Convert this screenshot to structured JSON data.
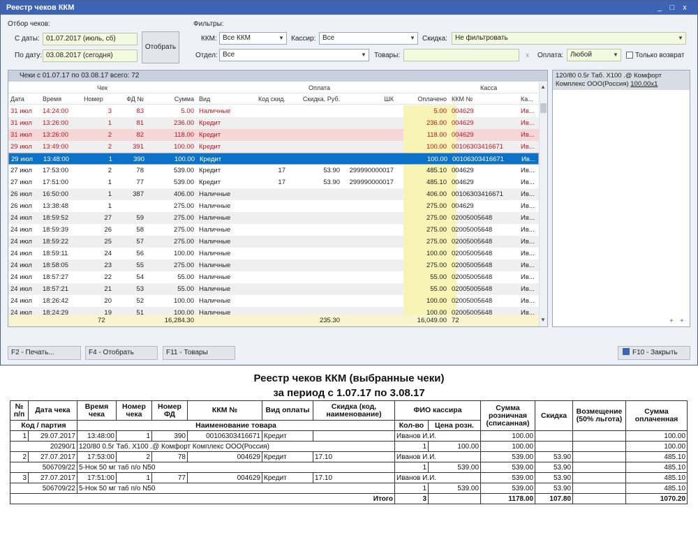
{
  "window": {
    "title": "Реестр чеков ККМ",
    "controls": [
      "_",
      "□",
      "x"
    ]
  },
  "selection": {
    "title": "Отбор чеков:",
    "from_label": "С даты:",
    "from_value": "01.07.2017  (июль, сб)",
    "to_label": "По дату:",
    "to_value": "03.08.2017  (сегодня)",
    "select_button": "Отобрать"
  },
  "filters": {
    "title": "Фильтры:",
    "kkm_label": "ККМ:",
    "kkm_value": "Все ККМ",
    "cashier_label": "Кассир:",
    "cashier_value": "Все",
    "discount_label": "Скидка:",
    "discount_value": "Не фильтровать",
    "dept_label": "Отдел:",
    "dept_value": "Все",
    "goods_label": "Товары:",
    "goods_value": "",
    "clear_glyph": "x",
    "payment_label": "Оплата:",
    "payment_value": "Любой",
    "returns_only_label": "Только возврат"
  },
  "grid": {
    "caption": "Чеки  с 01.07.17 по 03.08.17 всего: 72",
    "groups": [
      "Чек",
      "Оплата",
      "Касса"
    ],
    "columns": [
      "Дата",
      "Время",
      "Номер",
      "ФД №",
      "Сумма",
      "Вид",
      "Код скид.",
      "Скидка, Руб.",
      "ШК",
      "Оплачено",
      "ККМ №",
      "Ка..."
    ],
    "rows": [
      {
        "date": "31 июл",
        "time": "14:24:00",
        "num": "3",
        "fd": "83",
        "sum": "5.00",
        "kind": "Наличные",
        "dcode": "",
        "disc": "",
        "bc": "",
        "paid": "5.00",
        "kkm": "004629",
        "cash": "Ив...",
        "style": "red"
      },
      {
        "date": "31 июл",
        "time": "13:26:00",
        "num": "1",
        "fd": "81",
        "sum": "236.00",
        "kind": "Кредит",
        "dcode": "",
        "disc": "",
        "bc": "",
        "paid": "236.00",
        "kkm": "004629",
        "cash": "Ив...",
        "style": "red alt"
      },
      {
        "date": "31 июл",
        "time": "13:26:00",
        "num": "2",
        "fd": "82",
        "sum": "118.00",
        "kind": "Кредит",
        "dcode": "",
        "disc": "",
        "bc": "",
        "paid": "118.00",
        "kkm": "004629",
        "cash": "Ив...",
        "style": "red pink"
      },
      {
        "date": "29 июл",
        "time": "13:49:00",
        "num": "2",
        "fd": "391",
        "sum": "100.00",
        "kind": "Кредит",
        "dcode": "",
        "disc": "",
        "bc": "",
        "paid": "100.00",
        "kkm": "00106303416671",
        "cash": "Ив...",
        "style": "red alt"
      },
      {
        "date": "29 июл",
        "time": "13:48:00",
        "num": "1",
        "fd": "390",
        "sum": "100.00",
        "kind": "Кредит",
        "dcode": "",
        "disc": "",
        "bc": "",
        "paid": "100.00",
        "kkm": "00106303416671",
        "cash": "Ив...",
        "style": "sel"
      },
      {
        "date": "27 июл",
        "time": "17:53:00",
        "num": "2",
        "fd": "78",
        "sum": "539.00",
        "kind": "Кредит",
        "dcode": "17",
        "disc": "53.90",
        "bc": "299990000017",
        "paid": "485.10",
        "kkm": "004629",
        "cash": "Ив...",
        "style": ""
      },
      {
        "date": "27 июл",
        "time": "17:51:00",
        "num": "1",
        "fd": "77",
        "sum": "539.00",
        "kind": "Кредит",
        "dcode": "17",
        "disc": "53.90",
        "bc": "299990000017",
        "paid": "485.10",
        "kkm": "004629",
        "cash": "Ив...",
        "style": ""
      },
      {
        "date": "26 июл",
        "time": "16:50:00",
        "num": "1",
        "fd": "387",
        "sum": "406.00",
        "kind": "Наличные",
        "dcode": "",
        "disc": "",
        "bc": "",
        "paid": "406.00",
        "kkm": "00106303416671",
        "cash": "Ив...",
        "style": "alt"
      },
      {
        "date": "26 июл",
        "time": "13:38:48",
        "num": "1",
        "fd": "",
        "sum": "275.00",
        "kind": "Наличные",
        "dcode": "",
        "disc": "",
        "bc": "",
        "paid": "275.00",
        "kkm": "004629",
        "cash": "Ив...",
        "style": ""
      },
      {
        "date": "24 июл",
        "time": "18:59:52",
        "num": "27",
        "fd": "59",
        "sum": "275.00",
        "kind": "Наличные",
        "dcode": "",
        "disc": "",
        "bc": "",
        "paid": "275.00",
        "kkm": "02005005648",
        "cash": "Ив...",
        "style": "alt"
      },
      {
        "date": "24 июл",
        "time": "18:59:39",
        "num": "26",
        "fd": "58",
        "sum": "275.00",
        "kind": "Наличные",
        "dcode": "",
        "disc": "",
        "bc": "",
        "paid": "275.00",
        "kkm": "02005005648",
        "cash": "Ив...",
        "style": ""
      },
      {
        "date": "24 июл",
        "time": "18:59:22",
        "num": "25",
        "fd": "57",
        "sum": "275.00",
        "kind": "Наличные",
        "dcode": "",
        "disc": "",
        "bc": "",
        "paid": "275.00",
        "kkm": "02005005648",
        "cash": "Ив...",
        "style": "alt"
      },
      {
        "date": "24 июл",
        "time": "18:59:11",
        "num": "24",
        "fd": "56",
        "sum": "100.00",
        "kind": "Наличные",
        "dcode": "",
        "disc": "",
        "bc": "",
        "paid": "100.00",
        "kkm": "02005005648",
        "cash": "Ив...",
        "style": ""
      },
      {
        "date": "24 июл",
        "time": "18:58:05",
        "num": "23",
        "fd": "55",
        "sum": "275.00",
        "kind": "Наличные",
        "dcode": "",
        "disc": "",
        "bc": "",
        "paid": "275.00",
        "kkm": "02005005648",
        "cash": "Ив...",
        "style": "alt"
      },
      {
        "date": "24 июл",
        "time": "18:57:27",
        "num": "22",
        "fd": "54",
        "sum": "55.00",
        "kind": "Наличные",
        "dcode": "",
        "disc": "",
        "bc": "",
        "paid": "55.00",
        "kkm": "02005005648",
        "cash": "Ив...",
        "style": ""
      },
      {
        "date": "24 июл",
        "time": "18:57:21",
        "num": "21",
        "fd": "53",
        "sum": "55.00",
        "kind": "Наличные",
        "dcode": "",
        "disc": "",
        "bc": "",
        "paid": "55.00",
        "kkm": "02005005648",
        "cash": "Ив...",
        "style": "alt"
      },
      {
        "date": "24 июл",
        "time": "18:26:42",
        "num": "20",
        "fd": "52",
        "sum": "100.00",
        "kind": "Наличные",
        "dcode": "",
        "disc": "",
        "bc": "",
        "paid": "100.00",
        "kkm": "02005005648",
        "cash": "Ив...",
        "style": ""
      },
      {
        "date": "24 июл",
        "time": "18:24:29",
        "num": "19",
        "fd": "51",
        "sum": "100.00",
        "kind": "Наличные",
        "dcode": "",
        "disc": "",
        "bc": "",
        "paid": "100.00",
        "kkm": "02005005648",
        "cash": "Ив...",
        "style": "alt"
      }
    ],
    "footer": {
      "count": "72",
      "sum": "16,284.30",
      "disc": "235.30",
      "paid": "16,049.00",
      "kkm": "72"
    }
  },
  "right_pane": {
    "text": "120/80 0.5г Таб. Х100 .@ Комфорт Комплекс ООО(Россия)",
    "link": "100.00x1",
    "plus1": "+",
    "plus2": "+"
  },
  "fkeys": [
    "F2 - Печать...",
    "F4 - Отобрать",
    "F11 - Товары"
  ],
  "close_button": "F10 - Закрыть",
  "report": {
    "title": "Реестр чеков ККМ (выбранные чеки)",
    "period": "за период с  1.07.17 по  3.08.17",
    "head1": [
      "№ п/п",
      "Дата чека",
      "Время чека",
      "Номер чека",
      "Номер ФД",
      "ККМ №",
      "Вид оплаты",
      "Скидка (код, наименование)",
      "ФИО кассира",
      "Сумма розничная (списанная)",
      "Скидка",
      "Возмещение (50% льгота)",
      "Сумма оплаченная"
    ],
    "head2": [
      "Код / партия",
      "Наименование товара",
      "Кол-во",
      "Цена розн."
    ],
    "receipts": [
      {
        "n": "1",
        "date": "29.07.2017",
        "time": "13:48:00",
        "num": "1",
        "fd": "390",
        "kkm": "00106303416671",
        "pay": "Кредит",
        "disc_code": "",
        "cashier": "Иванов И.И.",
        "sum": "100.00",
        "disc": "",
        "comp": "",
        "paid": "100.00",
        "item": {
          "code": "20290/1",
          "name": "120/80 0.5г Таб. Х100 .@ Комфорт Комплекс ООО(Россия)",
          "qty": "1",
          "price": "100.00",
          "sum": "100.00",
          "disc": "",
          "paid": "100.00"
        }
      },
      {
        "n": "2",
        "date": "27.07.2017",
        "time": "17:53:00",
        "num": "2",
        "fd": "78",
        "kkm": "004629",
        "pay": "Кредит",
        "disc_code": "17.10",
        "cashier": "Иванов И.И.",
        "sum": "539.00",
        "disc": "53.90",
        "comp": "",
        "paid": "485.10",
        "item": {
          "code": "506709/22",
          "name": "5-Нок 50 мг таб п/о N50",
          "qty": "1",
          "price": "539.00",
          "sum": "539.00",
          "disc": "53.90",
          "paid": "485.10"
        }
      },
      {
        "n": "3",
        "date": "27.07.2017",
        "time": "17:51:00",
        "num": "1",
        "fd": "77",
        "kkm": "004629",
        "pay": "Кредит",
        "disc_code": "17.10",
        "cashier": "Иванов И.И.",
        "sum": "539.00",
        "disc": "53.90",
        "comp": "",
        "paid": "485.10",
        "item": {
          "code": "506709/22",
          "name": "5-Нок 50 мг таб п/о N50",
          "qty": "1",
          "price": "539.00",
          "sum": "539.00",
          "disc": "53.90",
          "paid": "485.10"
        }
      }
    ],
    "total": {
      "label": "Итого",
      "qty": "3",
      "sum": "1178.00",
      "disc": "107.80",
      "paid": "1070.20"
    }
  }
}
